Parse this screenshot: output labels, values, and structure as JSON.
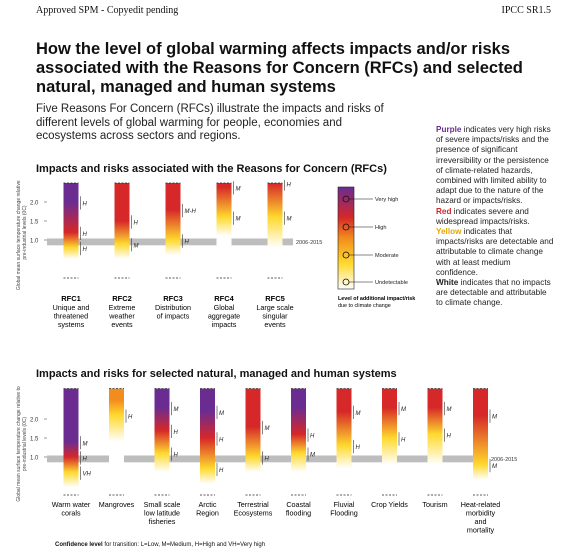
{
  "header": {
    "left": "Approved SPM - Copyedit pending",
    "right": "IPCC SR1.5"
  },
  "title": "How the level of global warming affects impacts and/or risks associated with the Reasons for Concern (RFCs) and selected natural, managed and human systems",
  "intro": "Five Reasons For Concern (RFCs) illustrate the impacts and risks of different levels of global warming for people, economies and ecosystems across sectors and regions.",
  "section1": "Impacts and risks associated with the Reasons for Concern (RFCs)",
  "section2": "Impacts and risks for selected natural, managed and human systems",
  "y_axis_label": "Global mean surface temperature change relative to pre-industrial levels (0C)",
  "ref_period": "2006-2015",
  "risk_legend": {
    "levels": [
      "Very high",
      "High",
      "Moderate",
      "Undetectable"
    ],
    "caption": "Level of additional impact/risk due to climate change",
    "caption_bold": "Level of additional impact/risk",
    "caption_rest": " due to climate change"
  },
  "legend_text": {
    "purple_word": "Purple",
    "purple_text": " indicates very high risks of severe impacts/risks and the presence of significant irreversibility or the persistence of climate-related hazards, combined with limited ability to adapt due to the nature of the hazard or impacts/risks.",
    "red_word": "Red",
    "red_text": " indicates severe and widespread impacts/risks.",
    "yellow_word": "Yellow",
    "yellow_text": " indicates that impacts/risks are detectable and attributable to climate change with at least medium confidence.",
    "white_word": "White",
    "white_text": " indicates that no impacts are detectable and attributable to climate change."
  },
  "confidence_note": {
    "bold": "Confidence level",
    "text": " for transition: L=Low, M=Medium, H=High and VH=Very high"
  },
  "colors": {
    "purple": "#6b2c91",
    "red": "#d62828",
    "orange": "#f28c1c",
    "yellow": "#ffd92e",
    "white": "#ffffff",
    "band": "#bdbdbd"
  },
  "chart_data": [
    {
      "type": "bar",
      "title": "Impacts and risks associated with the Reasons for Concern (RFCs)",
      "ylabel": "Global mean surface temperature change relative to pre-industrial levels (0C)",
      "yticks": [
        "1.0",
        "1.5",
        "2.0"
      ],
      "reference_band": "2006-2015",
      "bars": [
        {
          "id": "RFC1",
          "label": "Unique and threatened systems",
          "top": "purple",
          "stops": [
            [
              0.5,
              "white"
            ],
            [
              0.8,
              "yellow"
            ],
            [
              1.2,
              "red"
            ],
            [
              2.0,
              "purple"
            ]
          ],
          "confidence": [
            "H",
            "H",
            "H"
          ]
        },
        {
          "id": "RFC2",
          "label": "Extreme weather events",
          "top": "red",
          "stops": [
            [
              0.5,
              "white"
            ],
            [
              0.9,
              "yellow"
            ],
            [
              1.5,
              "red"
            ]
          ],
          "confidence": [
            "M",
            "H"
          ]
        },
        {
          "id": "RFC3",
          "label": "Distribution of impacts",
          "top": "red",
          "stops": [
            [
              0.6,
              "white"
            ],
            [
              1.0,
              "yellow"
            ],
            [
              1.8,
              "red"
            ]
          ],
          "confidence": [
            "H",
            "M-H"
          ]
        },
        {
          "id": "RFC4",
          "label": "Global aggregate impacts",
          "top": "red",
          "stops": [
            [
              1.1,
              "white"
            ],
            [
              1.6,
              "yellow"
            ],
            [
              2.4,
              "red"
            ]
          ],
          "confidence": [
            "M",
            "M"
          ]
        },
        {
          "id": "RFC5",
          "label": "Large scale singular events",
          "top": "red",
          "stops": [
            [
              0.8,
              "white"
            ],
            [
              1.6,
              "yellow"
            ],
            [
              2.5,
              "red"
            ]
          ],
          "confidence": [
            "M",
            "H"
          ]
        }
      ]
    },
    {
      "type": "bar",
      "title": "Impacts and risks for selected natural, managed and human systems",
      "ylabel": "Global mean surface temperature change relative to pre-industrial levels (0C)",
      "yticks": [
        "1.0",
        "1.5",
        "2.0"
      ],
      "reference_band": "2006-2015",
      "bars": [
        {
          "label": "Warm water corals",
          "top": "purple",
          "stops": [
            [
              0.2,
              "white"
            ],
            [
              0.6,
              "yellow"
            ],
            [
              1.0,
              "red"
            ],
            [
              1.4,
              "purple"
            ]
          ],
          "confidence": [
            "VH",
            "H",
            "M"
          ]
        },
        {
          "label": "Mangroves",
          "top": "orange",
          "stops": [
            [
              1.4,
              "white"
            ],
            [
              2.1,
              "yellow"
            ],
            [
              2.5,
              "orange"
            ]
          ],
          "confidence": [
            "H"
          ]
        },
        {
          "label": "Small scale low latitude fisheries",
          "top": "purple",
          "stops": [
            [
              0.6,
              "white"
            ],
            [
              1.1,
              "yellow"
            ],
            [
              1.7,
              "red"
            ],
            [
              2.3,
              "purple"
            ]
          ],
          "confidence": [
            "H",
            "H",
            "M"
          ]
        },
        {
          "label": "Arctic Region",
          "top": "purple",
          "stops": [
            [
              0.3,
              "white"
            ],
            [
              0.7,
              "yellow"
            ],
            [
              1.5,
              "red"
            ],
            [
              2.2,
              "purple"
            ]
          ],
          "confidence": [
            "H",
            "H",
            "M"
          ]
        },
        {
          "label": "Terrestrial Ecosystems",
          "top": "red",
          "stops": [
            [
              0.6,
              "white"
            ],
            [
              1.0,
              "yellow"
            ],
            [
              1.8,
              "red"
            ]
          ],
          "confidence": [
            "H",
            "M"
          ]
        },
        {
          "label": "Coastal flooding",
          "top": "purple",
          "stops": [
            [
              0.6,
              "white"
            ],
            [
              1.1,
              "yellow"
            ],
            [
              1.6,
              "red"
            ],
            [
              2.3,
              "purple"
            ]
          ],
          "confidence": [
            "M",
            "H"
          ]
        },
        {
          "label": "Fluvial Flooding",
          "top": "red",
          "stops": [
            [
              0.7,
              "white"
            ],
            [
              1.3,
              "yellow"
            ],
            [
              2.2,
              "red"
            ]
          ],
          "confidence": [
            "H",
            "M"
          ]
        },
        {
          "label": "Crop Yields",
          "top": "red",
          "stops": [
            [
              0.8,
              "white"
            ],
            [
              1.5,
              "yellow"
            ],
            [
              2.3,
              "red"
            ]
          ],
          "confidence": [
            "H",
            "M"
          ]
        },
        {
          "label": "Tourism",
          "top": "red",
          "stops": [
            [
              0.8,
              "white"
            ],
            [
              1.6,
              "yellow"
            ],
            [
              2.3,
              "red"
            ]
          ],
          "confidence": [
            "H",
            "M"
          ]
        },
        {
          "label": "Heat-related morbidity and mortality",
          "top": "red",
          "stops": [
            [
              0.4,
              "white"
            ],
            [
              0.8,
              "yellow"
            ],
            [
              2.1,
              "red"
            ]
          ],
          "confidence": [
            "M",
            "M"
          ]
        }
      ]
    }
  ]
}
